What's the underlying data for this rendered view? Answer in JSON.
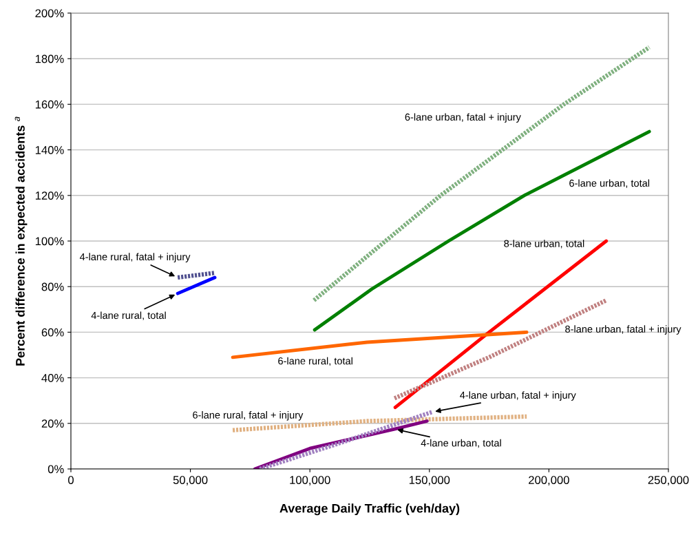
{
  "chart_data": {
    "type": "line",
    "xlabel": "Average Daily Traffic (veh/day)",
    "ylabel": "Percent difference in expected accidents $^{a}$",
    "xlim": [
      0,
      250000
    ],
    "xticks": [
      {
        "value": 0,
        "label": "0"
      },
      {
        "value": 50000,
        "label": "50,000"
      },
      {
        "value": 100000,
        "label": "100,000"
      },
      {
        "value": 150000,
        "label": "150,000"
      },
      {
        "value": 200000,
        "label": "200,000"
      },
      {
        "value": 250000,
        "label": "250,000"
      }
    ],
    "ylim": [
      0,
      200
    ],
    "yticks": [
      {
        "value": 0,
        "label": "0%"
      },
      {
        "value": 20,
        "label": "20%"
      },
      {
        "value": 40,
        "label": "40%"
      },
      {
        "value": 60,
        "label": "60%"
      },
      {
        "value": 80,
        "label": "80%"
      },
      {
        "value": 100,
        "label": "100%"
      },
      {
        "value": 120,
        "label": "120%"
      },
      {
        "value": 140,
        "label": "140%"
      },
      {
        "value": 160,
        "label": "160%"
      },
      {
        "value": 180,
        "label": "180%"
      },
      {
        "value": 200,
        "label": "200%"
      }
    ],
    "grid": "y",
    "legend": false,
    "marker": "none",
    "series": [
      {
        "name": "6-lane urban, fatal + injury",
        "color": "#7fb07f",
        "line_style": "dotted",
        "x": [
          101700,
          154700,
          206300,
          242000
        ],
        "values": [
          74,
          120,
          160,
          185
        ]
      },
      {
        "name": "6-lane urban, total",
        "color": "#008000",
        "line_style": "solid",
        "x": [
          102000,
          126000,
          158000,
          189700,
          242000
        ],
        "values": [
          61,
          79,
          100,
          120,
          148
        ]
      },
      {
        "name": "8-lane urban, total",
        "color": "#ff0000",
        "line_style": "solid",
        "x": [
          135700,
          175000,
          224000
        ],
        "values": [
          27,
          60,
          100
        ]
      },
      {
        "name": "8-lane urban, fatal + injury",
        "color": "#c08080",
        "line_style": "dotted",
        "x": [
          135400,
          175000,
          224000
        ],
        "values": [
          31,
          49,
          74
        ]
      },
      {
        "name": "6-lane rural, total",
        "color": "#ff6600",
        "line_style": "solid",
        "x": [
          67700,
          123900,
          190700
        ],
        "values": [
          49,
          55.6,
          60
        ]
      },
      {
        "name": "6-lane rural, fatal + injury",
        "color": "#e0b080",
        "line_style": "dotted",
        "x": [
          67700,
          123900,
          190700
        ],
        "values": [
          17,
          21,
          23
        ]
      },
      {
        "name": "4-lane urban, total",
        "color": "#800080",
        "line_style": "solid",
        "x": [
          77000,
          100000,
          135400,
          149000
        ],
        "values": [
          0,
          9,
          17.5,
          21
        ]
      },
      {
        "name": "4-lane urban, fatal + injury",
        "color": "#a080c0",
        "line_style": "dotted",
        "x": [
          79000,
          114400,
          151200
        ],
        "values": [
          0,
          12,
          25
        ]
      },
      {
        "name": "4-lane rural, total",
        "color": "#0000ff",
        "line_style": "solid",
        "x": [
          44700,
          60200
        ],
        "values": [
          77,
          84
        ]
      },
      {
        "name": "4-lane rural, fatal + injury",
        "color": "#505090",
        "line_style": "dotted",
        "x": [
          44700,
          60200
        ],
        "values": [
          84,
          86
        ]
      }
    ]
  }
}
